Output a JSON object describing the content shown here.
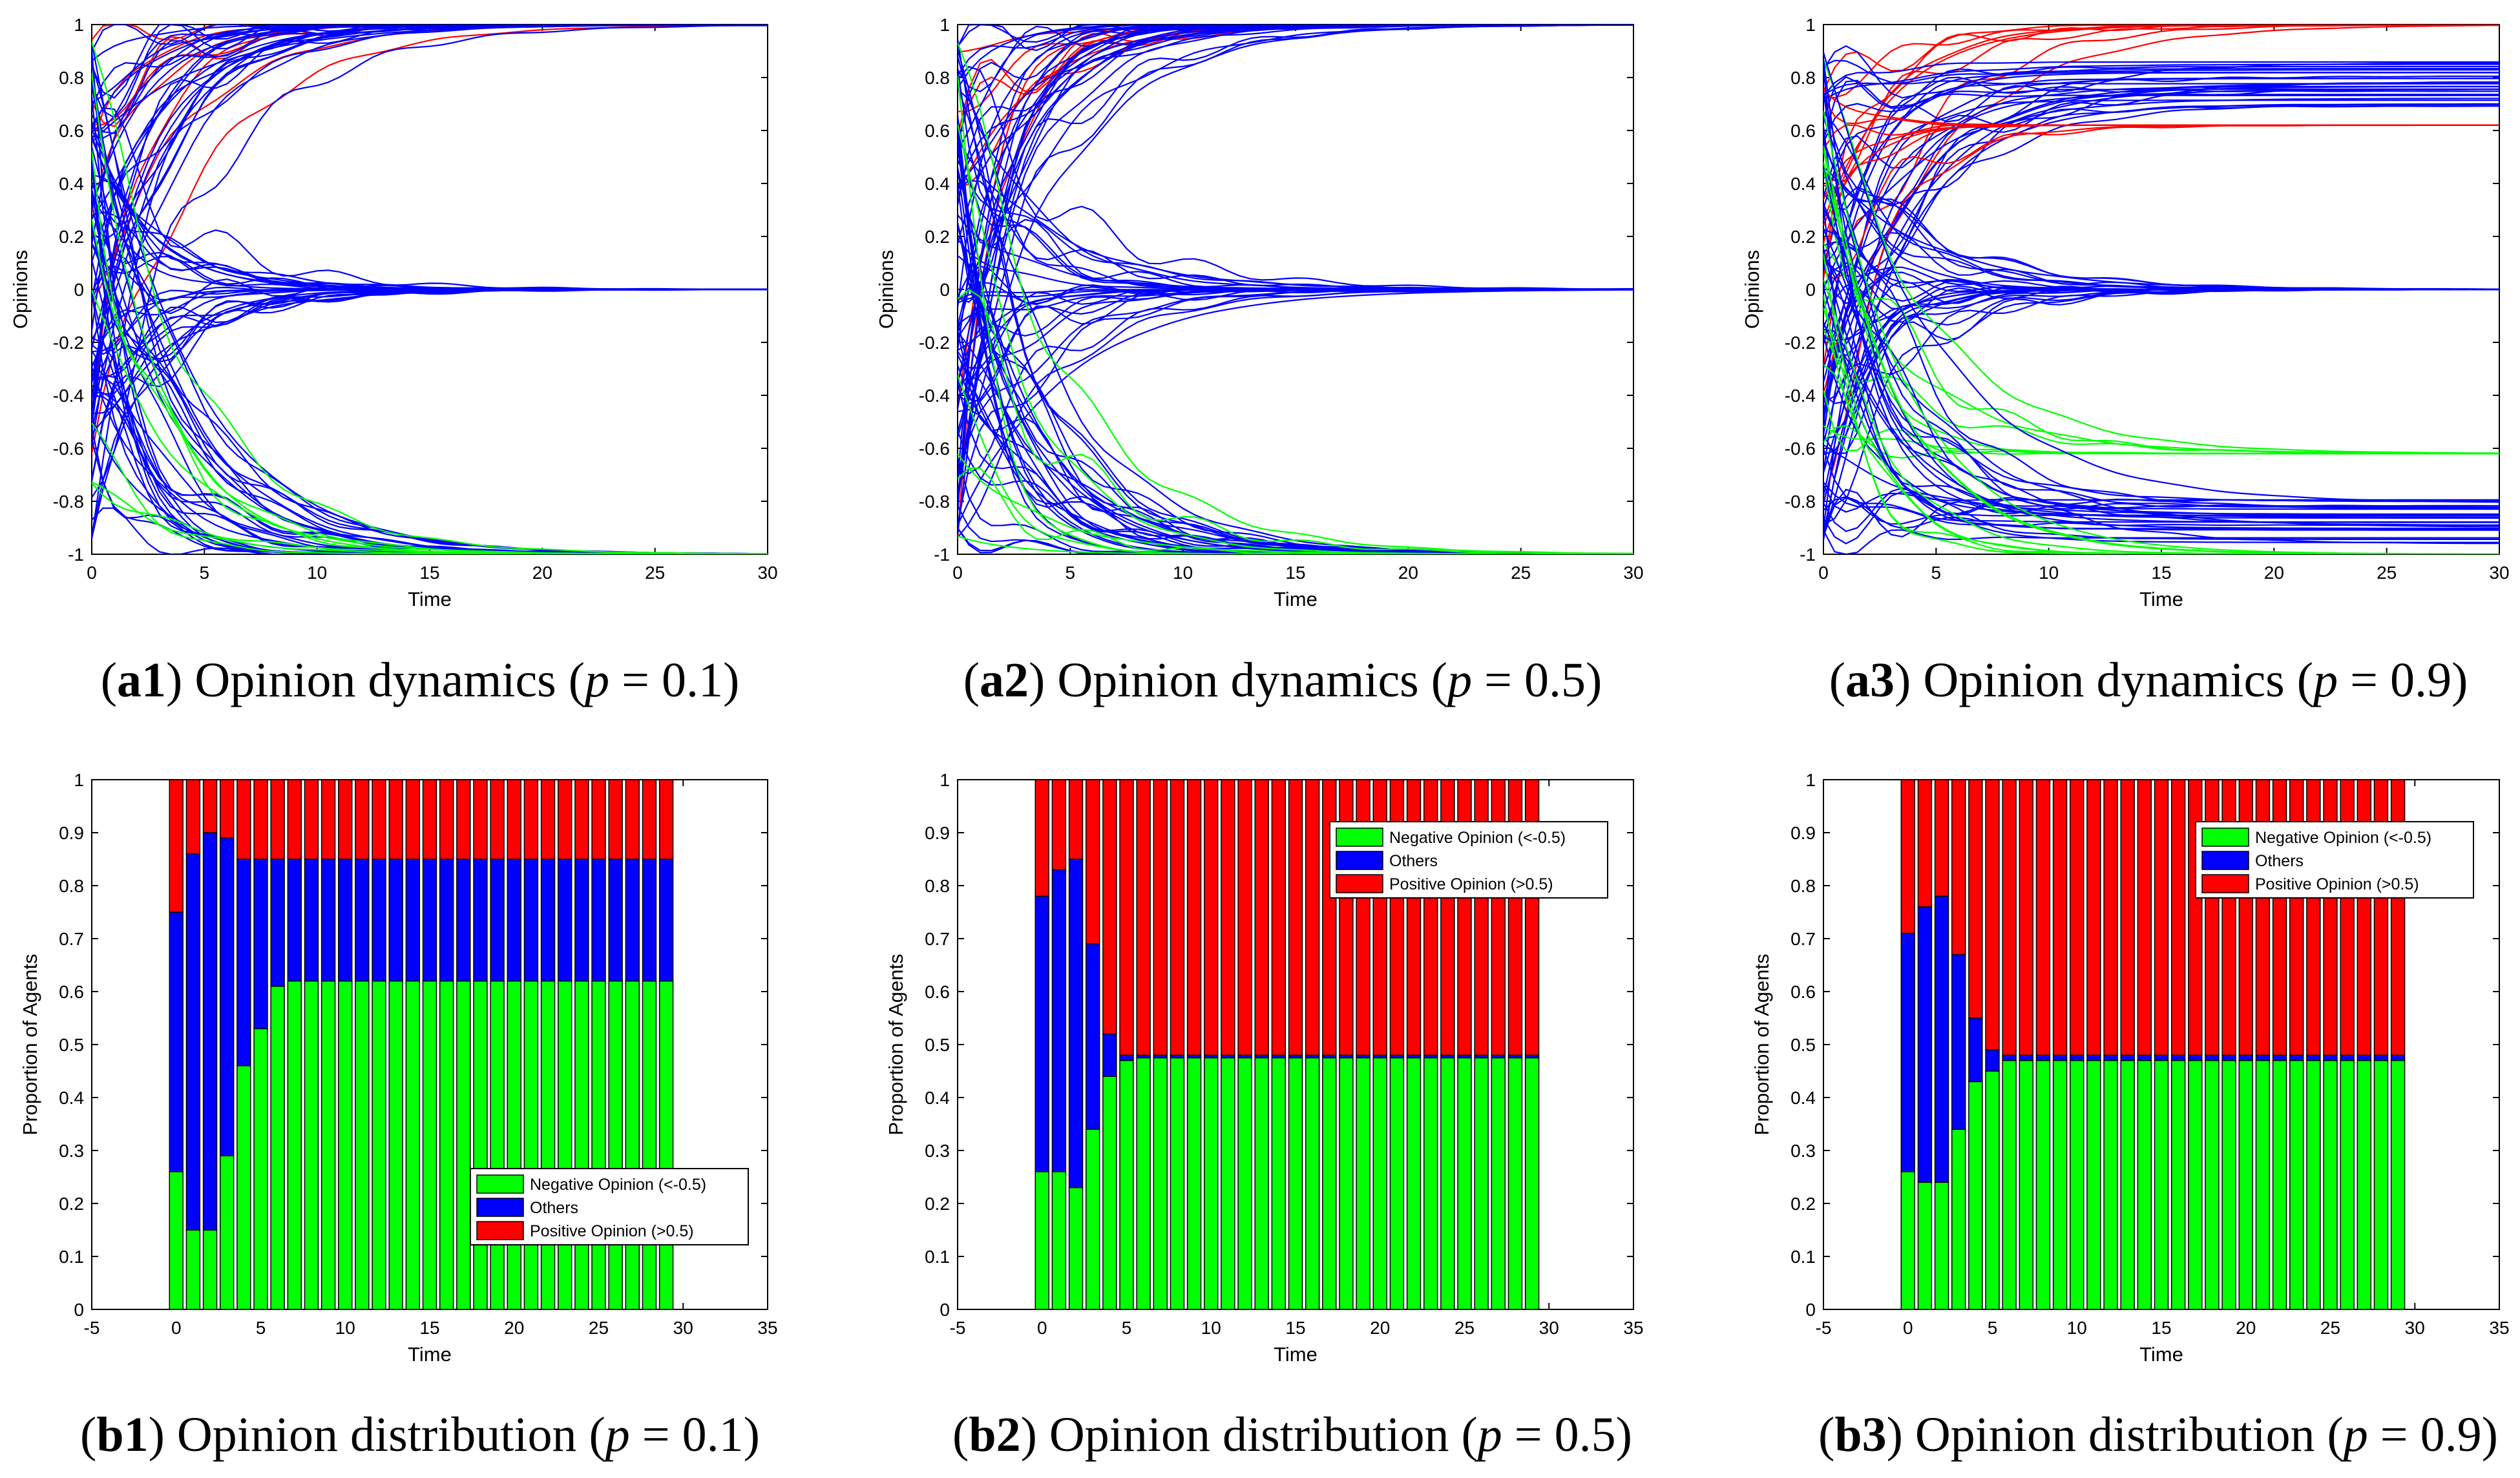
{
  "colors": {
    "negative": "#00ff00",
    "others": "#0000ff",
    "positive": "#ff0000",
    "axis": "#000000"
  },
  "chart_data": [
    {
      "id": "a1",
      "type": "line",
      "caption_label": "a1",
      "caption_text": "Opinion dynamics",
      "caption_param": "p",
      "caption_value": "0.1",
      "xlabel": "Time",
      "ylabel": "Opinions",
      "xlim": [
        0,
        30
      ],
      "ylim": [
        -1,
        1
      ],
      "xticks": [
        "0",
        "5",
        "10",
        "15",
        "20",
        "25",
        "30"
      ],
      "yticks": [
        "-1",
        "-0.8",
        "-0.6",
        "-0.4",
        "-0.2",
        "0",
        "0.2",
        "0.4",
        "0.6",
        "0.8",
        "1"
      ],
      "final_levels": [
        {
          "value": 1,
          "color": "positive"
        },
        {
          "value": 1,
          "color": "others"
        },
        {
          "value": 0,
          "color": "others"
        },
        {
          "value": -1,
          "color": "others"
        },
        {
          "value": -1,
          "color": "negative"
        }
      ]
    },
    {
      "id": "a2",
      "type": "line",
      "caption_label": "a2",
      "caption_text": "Opinion dynamics",
      "caption_param": "p",
      "caption_value": "0.5",
      "xlabel": "Time",
      "ylabel": "Opinions",
      "xlim": [
        0,
        30
      ],
      "ylim": [
        -1,
        1
      ],
      "xticks": [
        "0",
        "5",
        "10",
        "15",
        "20",
        "25",
        "30"
      ],
      "yticks": [
        "-1",
        "-0.8",
        "-0.6",
        "-0.4",
        "-0.2",
        "0",
        "0.2",
        "0.4",
        "0.6",
        "0.8",
        "1"
      ],
      "final_levels": [
        {
          "value": 1,
          "color": "positive"
        },
        {
          "value": 1,
          "color": "others"
        },
        {
          "value": 0,
          "color": "others"
        },
        {
          "value": -1,
          "color": "others"
        },
        {
          "value": -1,
          "color": "negative"
        }
      ]
    },
    {
      "id": "a3",
      "type": "line",
      "caption_label": "a3",
      "caption_text": "Opinion dynamics",
      "caption_param": "p",
      "caption_value": "0.9",
      "xlabel": "Time",
      "ylabel": "Opinions",
      "xlim": [
        0,
        30
      ],
      "ylim": [
        -1,
        1
      ],
      "xticks": [
        "0",
        "5",
        "10",
        "15",
        "20",
        "25",
        "30"
      ],
      "yticks": [
        "-1",
        "-0.8",
        "-0.6",
        "-0.4",
        "-0.2",
        "0",
        "0.2",
        "0.4",
        "0.6",
        "0.8",
        "1"
      ],
      "final_levels": [
        {
          "value": 1,
          "color": "positive"
        },
        {
          "value": 0.78,
          "color": "others"
        },
        {
          "value": 0.62,
          "color": "positive"
        },
        {
          "value": 0,
          "color": "others"
        },
        {
          "value": -0.62,
          "color": "negative"
        },
        {
          "value": -0.88,
          "color": "others"
        },
        {
          "value": -1,
          "color": "negative"
        }
      ]
    },
    {
      "id": "b1",
      "type": "bar",
      "stacked": true,
      "caption_label": "b1",
      "caption_text": "Opinion distribution",
      "caption_param": "p",
      "caption_value": "0.1",
      "xlabel": "Time",
      "ylabel": "Proportion of Agents",
      "xlim": [
        -5,
        35
      ],
      "ylim": [
        0,
        1
      ],
      "xticks": [
        "-5",
        "0",
        "5",
        "10",
        "15",
        "20",
        "25",
        "30",
        "35"
      ],
      "yticks": [
        "0",
        "0.1",
        "0.2",
        "0.3",
        "0.4",
        "0.5",
        "0.6",
        "0.7",
        "0.8",
        "0.9",
        "1"
      ],
      "legend_position": "lower-right",
      "legend": [
        "Negative Opinion (<-0.5)",
        "Others",
        "Positive Opinion (>0.5)"
      ],
      "x": [
        0,
        1,
        2,
        3,
        4,
        5,
        6,
        7,
        8,
        9,
        10,
        11,
        12,
        13,
        14,
        15,
        16,
        17,
        18,
        19,
        20,
        21,
        22,
        23,
        24,
        25,
        26,
        27,
        28,
        29
      ],
      "series": [
        {
          "name": "Negative Opinion (<-0.5)",
          "color": "negative",
          "values": [
            0.26,
            0.15,
            0.15,
            0.29,
            0.46,
            0.53,
            0.61,
            0.62,
            0.62,
            0.62,
            0.62,
            0.62,
            0.62,
            0.62,
            0.62,
            0.62,
            0.62,
            0.62,
            0.62,
            0.62,
            0.62,
            0.62,
            0.62,
            0.62,
            0.62,
            0.62,
            0.62,
            0.62,
            0.62,
            0.62
          ]
        },
        {
          "name": "Others",
          "color": "others",
          "values": [
            0.49,
            0.71,
            0.75,
            0.6,
            0.39,
            0.32,
            0.24,
            0.23,
            0.23,
            0.23,
            0.23,
            0.23,
            0.23,
            0.23,
            0.23,
            0.23,
            0.23,
            0.23,
            0.23,
            0.23,
            0.23,
            0.23,
            0.23,
            0.23,
            0.23,
            0.23,
            0.23,
            0.23,
            0.23,
            0.23
          ]
        },
        {
          "name": "Positive Opinion (>0.5)",
          "color": "positive",
          "values": [
            0.25,
            0.14,
            0.1,
            0.11,
            0.15,
            0.15,
            0.15,
            0.15,
            0.15,
            0.15,
            0.15,
            0.15,
            0.15,
            0.15,
            0.15,
            0.15,
            0.15,
            0.15,
            0.15,
            0.15,
            0.15,
            0.15,
            0.15,
            0.15,
            0.15,
            0.15,
            0.15,
            0.15,
            0.15,
            0.15
          ]
        }
      ]
    },
    {
      "id": "b2",
      "type": "bar",
      "stacked": true,
      "caption_label": "b2",
      "caption_text": "Opinion distribution",
      "caption_param": "p",
      "caption_value": "0.5",
      "xlabel": "Time",
      "ylabel": "Proportion of Agents",
      "xlim": [
        -5,
        35
      ],
      "ylim": [
        0,
        1
      ],
      "xticks": [
        "-5",
        "0",
        "5",
        "10",
        "15",
        "20",
        "25",
        "30",
        "35"
      ],
      "yticks": [
        "0",
        "0.1",
        "0.2",
        "0.3",
        "0.4",
        "0.5",
        "0.6",
        "0.7",
        "0.8",
        "0.9",
        "1"
      ],
      "legend_position": "top-right",
      "legend": [
        "Negative Opinion (<-0.5)",
        "Others",
        "Positive Opinion (>0.5)"
      ],
      "x": [
        0,
        1,
        2,
        3,
        4,
        5,
        6,
        7,
        8,
        9,
        10,
        11,
        12,
        13,
        14,
        15,
        16,
        17,
        18,
        19,
        20,
        21,
        22,
        23,
        24,
        25,
        26,
        27,
        28,
        29
      ],
      "series": [
        {
          "name": "Negative Opinion (<-0.5)",
          "color": "negative",
          "values": [
            0.26,
            0.26,
            0.23,
            0.34,
            0.44,
            0.47,
            0.475,
            0.475,
            0.475,
            0.475,
            0.475,
            0.475,
            0.475,
            0.475,
            0.475,
            0.475,
            0.475,
            0.475,
            0.475,
            0.475,
            0.475,
            0.475,
            0.475,
            0.475,
            0.475,
            0.475,
            0.475,
            0.475,
            0.475,
            0.475
          ]
        },
        {
          "name": "Others",
          "color": "others",
          "values": [
            0.52,
            0.57,
            0.62,
            0.35,
            0.08,
            0.01,
            0.005,
            0.005,
            0.005,
            0.005,
            0.005,
            0.005,
            0.005,
            0.005,
            0.005,
            0.005,
            0.005,
            0.005,
            0.005,
            0.005,
            0.005,
            0.005,
            0.005,
            0.005,
            0.005,
            0.005,
            0.005,
            0.005,
            0.005,
            0.005
          ]
        },
        {
          "name": "Positive Opinion (>0.5)",
          "color": "positive",
          "values": [
            0.22,
            0.17,
            0.15,
            0.31,
            0.48,
            0.52,
            0.52,
            0.52,
            0.52,
            0.52,
            0.52,
            0.52,
            0.52,
            0.52,
            0.52,
            0.52,
            0.52,
            0.52,
            0.52,
            0.52,
            0.52,
            0.52,
            0.52,
            0.52,
            0.52,
            0.52,
            0.52,
            0.52,
            0.52,
            0.52
          ]
        }
      ]
    },
    {
      "id": "b3",
      "type": "bar",
      "stacked": true,
      "caption_label": "b3",
      "caption_text": "Opinion distribution",
      "caption_param": "p",
      "caption_value": "0.9",
      "xlabel": "Time",
      "ylabel": "Proportion of Agents",
      "xlim": [
        -5,
        35
      ],
      "ylim": [
        0,
        1
      ],
      "xticks": [
        "-5",
        "0",
        "5",
        "10",
        "15",
        "20",
        "25",
        "30",
        "35"
      ],
      "yticks": [
        "0",
        "0.1",
        "0.2",
        "0.3",
        "0.4",
        "0.5",
        "0.6",
        "0.7",
        "0.8",
        "0.9",
        "1"
      ],
      "legend_position": "top-right",
      "legend": [
        "Negative Opinion (<-0.5)",
        "Others",
        "Positive Opinion (>0.5)"
      ],
      "x": [
        0,
        1,
        2,
        3,
        4,
        5,
        6,
        7,
        8,
        9,
        10,
        11,
        12,
        13,
        14,
        15,
        16,
        17,
        18,
        19,
        20,
        21,
        22,
        23,
        24,
        25,
        26,
        27,
        28,
        29
      ],
      "series": [
        {
          "name": "Negative Opinion (<-0.5)",
          "color": "negative",
          "values": [
            0.26,
            0.24,
            0.24,
            0.34,
            0.43,
            0.45,
            0.47,
            0.47,
            0.47,
            0.47,
            0.47,
            0.47,
            0.47,
            0.47,
            0.47,
            0.47,
            0.47,
            0.47,
            0.47,
            0.47,
            0.47,
            0.47,
            0.47,
            0.47,
            0.47,
            0.47,
            0.47,
            0.47,
            0.47,
            0.47
          ]
        },
        {
          "name": "Others",
          "color": "others",
          "values": [
            0.45,
            0.52,
            0.54,
            0.33,
            0.12,
            0.04,
            0.01,
            0.01,
            0.01,
            0.01,
            0.01,
            0.01,
            0.01,
            0.01,
            0.01,
            0.01,
            0.01,
            0.01,
            0.01,
            0.01,
            0.01,
            0.01,
            0.01,
            0.01,
            0.01,
            0.01,
            0.01,
            0.01,
            0.01,
            0.01
          ]
        },
        {
          "name": "Positive Opinion (>0.5)",
          "color": "positive",
          "values": [
            0.29,
            0.24,
            0.22,
            0.33,
            0.45,
            0.51,
            0.52,
            0.52,
            0.52,
            0.52,
            0.52,
            0.52,
            0.52,
            0.52,
            0.52,
            0.52,
            0.52,
            0.52,
            0.52,
            0.52,
            0.52,
            0.52,
            0.52,
            0.52,
            0.52,
            0.52,
            0.52,
            0.52,
            0.52,
            0.52
          ]
        }
      ]
    }
  ]
}
